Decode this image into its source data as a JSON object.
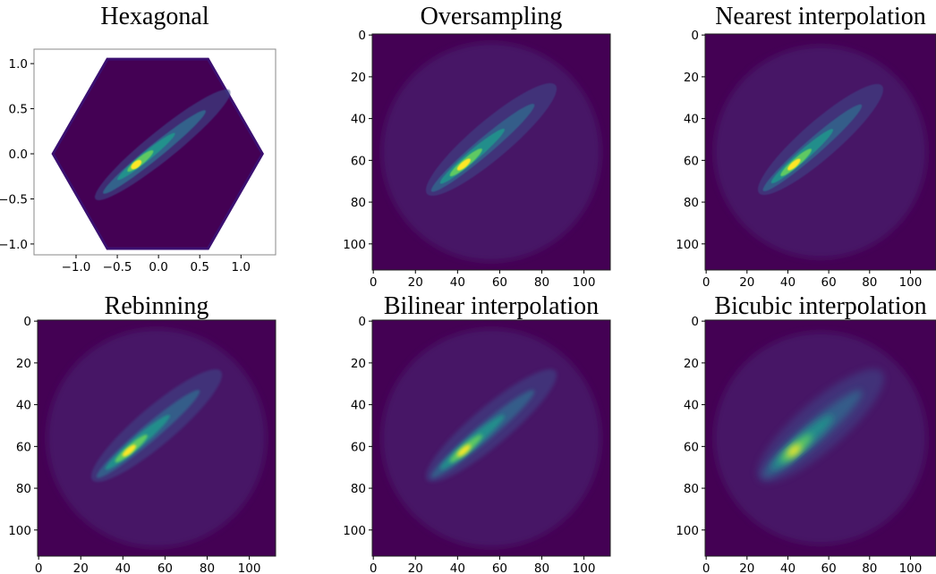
{
  "chart_data": [
    {
      "type": "hexbin",
      "title": "Hexagonal",
      "xlim": [
        -1.51,
        1.42
      ],
      "ylim": [
        -1.12,
        1.16
      ],
      "xticks": [
        {
          "value": -1.0,
          "label": "−1.0"
        },
        {
          "value": -0.5,
          "label": "−0.5"
        },
        {
          "value": 0.0,
          "label": "0.0"
        },
        {
          "value": 0.5,
          "label": "0.5"
        },
        {
          "value": 1.0,
          "label": "1.0"
        }
      ],
      "yticks": [
        {
          "value": -1.0,
          "label": "−1.0"
        },
        {
          "value": -0.5,
          "label": "−0.5"
        },
        {
          "value": 0.0,
          "label": "0.0"
        },
        {
          "value": 0.5,
          "label": "0.5"
        },
        {
          "value": 1.0,
          "label": "1.0"
        }
      ]
    },
    {
      "type": "image",
      "title": "Oversampling",
      "xlim": [
        -0.5,
        112.5
      ],
      "ylim": [
        112.5,
        -0.5
      ],
      "xticks": [
        0,
        20,
        40,
        60,
        80,
        100
      ],
      "yticks": [
        0,
        20,
        40,
        60,
        80,
        100
      ]
    },
    {
      "type": "image",
      "title": "Nearest interpolation",
      "xlim": [
        -0.5,
        112.5
      ],
      "ylim": [
        112.5,
        -0.5
      ],
      "xticks": [
        0,
        20,
        40,
        60,
        80,
        100
      ],
      "yticks": [
        0,
        20,
        40,
        60,
        80,
        100
      ]
    },
    {
      "type": "image",
      "title": "Rebinning",
      "xlim": [
        -0.5,
        112.5
      ],
      "ylim": [
        112.5,
        -0.5
      ],
      "xticks": [
        0,
        20,
        40,
        60,
        80,
        100
      ],
      "yticks": [
        0,
        20,
        40,
        60,
        80,
        100
      ]
    },
    {
      "type": "image",
      "title": "Bilinear interpolation",
      "xlim": [
        -0.5,
        112.5
      ],
      "ylim": [
        112.5,
        -0.5
      ],
      "xticks": [
        0,
        20,
        40,
        60,
        80,
        100
      ],
      "yticks": [
        0,
        20,
        40,
        60,
        80,
        100
      ]
    },
    {
      "type": "image",
      "title": "Bicubic interpolation",
      "xlim": [
        -0.5,
        112.5
      ],
      "ylim": [
        112.5,
        -0.5
      ],
      "xticks": [
        0,
        20,
        40,
        60,
        80,
        100
      ],
      "yticks": [
        0,
        20,
        40,
        60,
        80,
        100
      ]
    }
  ]
}
